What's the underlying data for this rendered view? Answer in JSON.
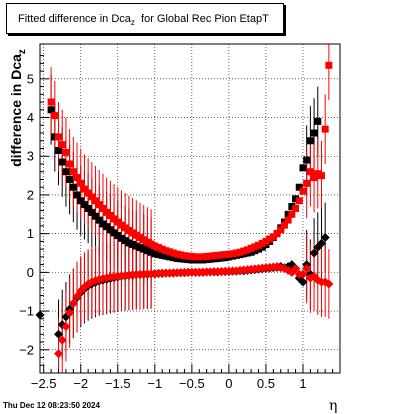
{
  "header": {
    "title_main": "Fitted difference in Dca",
    "title_sub": "z",
    "title_rest": "  for Global Rec Pion EtapT"
  },
  "footer": {
    "datestamp": "Thu Dec 12 08:23:50 2024"
  },
  "chart_data": {
    "type": "scatter",
    "title": "Fitted difference in Dca_z  for Global Rec Pion EtapT",
    "xlabel": "η",
    "ylabel": "difference in Dca_z",
    "xlim": [
      -2.55,
      1.5
    ],
    "ylim": [
      -2.6,
      5.9
    ],
    "grid": true,
    "x_ticks": [
      "−2.5",
      "−2",
      "−1.5",
      "−1",
      "−0.5",
      "0",
      "0.5",
      "1"
    ],
    "y_ticks": [
      "−2",
      "−1",
      "0",
      "1",
      "2",
      "3",
      "4",
      "5"
    ],
    "series": [
      {
        "marker": "square",
        "color": "#000000",
        "x": [
          -2.4,
          -2.35,
          -2.3,
          -2.25,
          -2.2,
          -2.15,
          -2.1,
          -2.05,
          -2.0,
          -1.95,
          -1.9,
          -1.85,
          -1.8,
          -1.75,
          -1.7,
          -1.65,
          -1.6,
          -1.55,
          -1.5,
          -1.45,
          -1.4,
          -1.35,
          -1.3,
          -1.25,
          -1.2,
          -1.15,
          -1.1,
          -1.05,
          -1.0,
          -0.95,
          -0.9,
          -0.85,
          -0.8,
          -0.75,
          -0.7,
          -0.65,
          -0.6,
          -0.55,
          -0.5,
          -0.45,
          -0.4,
          -0.35,
          -0.3,
          -0.25,
          -0.2,
          -0.15,
          -0.1,
          -0.05,
          0.0,
          0.05,
          0.1,
          0.15,
          0.2,
          0.25,
          0.3,
          0.35,
          0.4,
          0.45,
          0.5,
          0.55,
          0.6,
          0.65,
          0.7,
          0.75,
          0.8,
          0.85,
          0.9,
          0.95,
          1.0,
          1.05,
          1.1,
          1.15,
          1.2
        ],
        "y": [
          4.2,
          3.5,
          3.15,
          2.85,
          2.6,
          2.4,
          2.2,
          2.0,
          1.85,
          1.75,
          1.65,
          1.55,
          1.45,
          1.35,
          1.25,
          1.18,
          1.1,
          1.02,
          0.95,
          0.88,
          0.82,
          0.76,
          0.72,
          0.68,
          0.64,
          0.6,
          0.56,
          0.52,
          0.48,
          0.46,
          0.44,
          0.42,
          0.4,
          0.38,
          0.36,
          0.35,
          0.34,
          0.33,
          0.32,
          0.32,
          0.32,
          0.32,
          0.33,
          0.34,
          0.35,
          0.36,
          0.37,
          0.38,
          0.4,
          0.42,
          0.44,
          0.46,
          0.48,
          0.5,
          0.52,
          0.56,
          0.6,
          0.65,
          0.72,
          0.8,
          0.9,
          1.0,
          1.15,
          1.3,
          1.5,
          1.7,
          1.9,
          2.2,
          2.7,
          2.9,
          3.4,
          3.6,
          3.9
        ]
      },
      {
        "marker": "square",
        "color": "#ff0000",
        "x": [
          -2.4,
          -2.35,
          -2.3,
          -2.25,
          -2.2,
          -2.15,
          -2.1,
          -2.05,
          -2.0,
          -1.95,
          -1.9,
          -1.85,
          -1.8,
          -1.75,
          -1.7,
          -1.65,
          -1.6,
          -1.55,
          -1.5,
          -1.45,
          -1.4,
          -1.35,
          -1.3,
          -1.25,
          -1.2,
          -1.15,
          -1.1,
          -1.05,
          -1.0,
          -0.95,
          -0.9,
          -0.85,
          -0.8,
          -0.75,
          -0.7,
          -0.65,
          -0.6,
          -0.55,
          -0.5,
          -0.45,
          -0.4,
          -0.35,
          -0.3,
          -0.25,
          -0.2,
          -0.15,
          -0.1,
          -0.05,
          0.0,
          0.05,
          0.1,
          0.15,
          0.2,
          0.25,
          0.3,
          0.35,
          0.4,
          0.45,
          0.5,
          0.55,
          0.6,
          0.65,
          0.7,
          0.75,
          0.8,
          0.85,
          0.9,
          0.95,
          1.0,
          1.05,
          1.1,
          1.15,
          1.2,
          1.25,
          1.3,
          1.35
        ],
        "y": [
          4.4,
          4.05,
          3.5,
          3.3,
          3.1,
          2.8,
          2.6,
          2.45,
          2.3,
          2.15,
          2.05,
          1.95,
          1.85,
          1.75,
          1.65,
          1.55,
          1.47,
          1.38,
          1.3,
          1.22,
          1.15,
          1.08,
          1.02,
          0.96,
          0.9,
          0.84,
          0.78,
          0.73,
          0.68,
          0.64,
          0.6,
          0.56,
          0.53,
          0.5,
          0.47,
          0.45,
          0.43,
          0.42,
          0.41,
          0.4,
          0.4,
          0.4,
          0.41,
          0.42,
          0.43,
          0.44,
          0.45,
          0.46,
          0.47,
          0.48,
          0.5,
          0.52,
          0.55,
          0.58,
          0.62,
          0.66,
          0.7,
          0.75,
          0.8,
          0.86,
          0.92,
          1.0,
          1.1,
          1.22,
          1.35,
          1.5,
          1.65,
          1.85,
          2.1,
          2.3,
          2.6,
          2.45,
          2.55,
          2.5,
          3.7,
          5.35
        ]
      },
      {
        "marker": "diamond",
        "color": "#000000",
        "x": [
          -2.55,
          -2.3,
          -2.25,
          -2.2,
          -2.15,
          -2.1,
          -2.05,
          -2.0,
          -1.95,
          -1.9,
          -1.85,
          -1.8,
          -1.75,
          -1.7,
          -1.65,
          -1.6,
          -1.55,
          -1.5,
          -1.45,
          -1.4,
          -1.35,
          -1.3,
          -1.25,
          -1.2,
          -1.15,
          -1.1,
          -1.05,
          -1.0,
          -0.95,
          -0.9,
          -0.85,
          -0.8,
          -0.75,
          -0.7,
          -0.65,
          -0.6,
          -0.55,
          -0.5,
          -0.45,
          -0.4,
          -0.35,
          -0.3,
          -0.25,
          -0.2,
          -0.15,
          -0.1,
          -0.05,
          0.0,
          0.05,
          0.1,
          0.15,
          0.2,
          0.25,
          0.3,
          0.35,
          0.4,
          0.45,
          0.5,
          0.55,
          0.6,
          0.65,
          0.7,
          0.75,
          0.8,
          0.85,
          0.9,
          0.95,
          1.0,
          1.05,
          1.1,
          1.15,
          1.2,
          1.25,
          1.3
        ],
        "y": [
          -1.1,
          -1.6,
          -1.35,
          -1.15,
          -0.95,
          -0.8,
          -0.65,
          -0.52,
          -0.42,
          -0.35,
          -0.3,
          -0.26,
          -0.22,
          -0.2,
          -0.18,
          -0.16,
          -0.14,
          -0.12,
          -0.1,
          -0.09,
          -0.08,
          -0.07,
          -0.06,
          -0.06,
          -0.05,
          -0.05,
          -0.04,
          -0.04,
          -0.03,
          -0.03,
          -0.02,
          -0.02,
          -0.02,
          -0.01,
          -0.01,
          -0.01,
          0.0,
          0.0,
          0.0,
          0.0,
          0.0,
          0.01,
          0.01,
          0.01,
          0.01,
          0.02,
          0.02,
          0.02,
          0.03,
          0.03,
          0.04,
          0.04,
          0.05,
          0.06,
          0.07,
          0.08,
          0.09,
          0.1,
          0.11,
          0.12,
          0.13,
          0.15,
          0.12,
          0.15,
          0.2,
          0.1,
          -0.15,
          -0.25,
          0.2,
          -0.05,
          0.5,
          0.65,
          0.75,
          0.9
        ]
      },
      {
        "marker": "diamond",
        "color": "#ff0000",
        "x": [
          -2.3,
          -2.25,
          -2.2,
          -2.15,
          -2.1,
          -2.05,
          -2.0,
          -1.95,
          -1.9,
          -1.85,
          -1.8,
          -1.75,
          -1.7,
          -1.65,
          -1.6,
          -1.55,
          -1.5,
          -1.45,
          -1.4,
          -1.35,
          -1.3,
          -1.25,
          -1.2,
          -1.15,
          -1.1,
          -1.05,
          -1.0,
          -0.95,
          -0.9,
          -0.85,
          -0.8,
          -0.75,
          -0.7,
          -0.65,
          -0.6,
          -0.55,
          -0.5,
          -0.45,
          -0.4,
          -0.35,
          -0.3,
          -0.25,
          -0.2,
          -0.15,
          -0.1,
          -0.05,
          0.0,
          0.05,
          0.1,
          0.15,
          0.2,
          0.25,
          0.3,
          0.35,
          0.4,
          0.45,
          0.5,
          0.55,
          0.6,
          0.65,
          0.7,
          0.75,
          0.8,
          0.85,
          0.9,
          0.95,
          1.0,
          1.05,
          1.1,
          1.15,
          1.2,
          1.25,
          1.3,
          1.35
        ],
        "y": [
          -2.1,
          -1.75,
          -1.4,
          -1.05,
          -0.8,
          -0.62,
          -0.48,
          -0.38,
          -0.3,
          -0.25,
          -0.21,
          -0.18,
          -0.16,
          -0.14,
          -0.12,
          -0.11,
          -0.1,
          -0.09,
          -0.08,
          -0.07,
          -0.06,
          -0.06,
          -0.05,
          -0.05,
          -0.04,
          -0.04,
          -0.03,
          -0.03,
          -0.02,
          -0.02,
          -0.02,
          -0.01,
          -0.01,
          -0.01,
          0.0,
          0.0,
          0.0,
          0.0,
          0.0,
          0.01,
          0.01,
          0.01,
          0.02,
          0.02,
          0.02,
          0.03,
          0.03,
          0.04,
          0.04,
          0.05,
          0.06,
          0.07,
          0.08,
          0.09,
          0.1,
          0.11,
          0.12,
          0.13,
          0.14,
          0.15,
          0.12,
          0.1,
          0.05,
          0.0,
          0.1,
          -0.05,
          -0.05,
          0.1,
          -0.15,
          -0.1,
          -0.2,
          -0.25,
          -0.25,
          -0.3
        ]
      }
    ]
  }
}
